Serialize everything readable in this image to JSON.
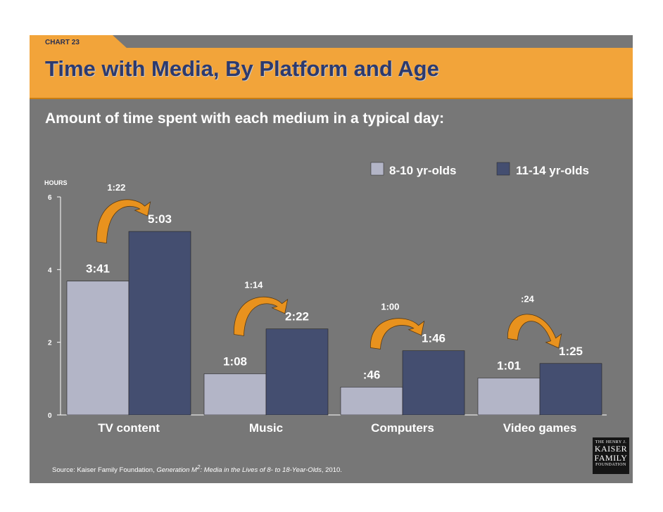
{
  "slide": {
    "tab_label": "CHART 23",
    "title": "Time with Media, By Platform and Age",
    "subtitle": "Amount of time spent with each medium in a typical day:",
    "source_prefix": "Source: Kaiser Family Foundation, ",
    "source_title": "Generation M",
    "source_sup": "2",
    "source_rest": ": Media in the Lives of 8- to 18-Year-Olds",
    "source_suffix": ", 2010.",
    "logo_line1": "THE HENRY J.",
    "logo_line2": "KAISER",
    "logo_line3": "FAMILY",
    "logo_line4": "FOUNDATION"
  },
  "colors": {
    "background": "#777777",
    "header": "#f2a43a",
    "series1": "#b3b5c7",
    "series2": "#444e70",
    "arrow": "#e8921e"
  },
  "chart_data": {
    "type": "bar",
    "title": "Time with Media, By Platform and Age",
    "ylabel": "HOURS",
    "ylim": [
      0,
      6
    ],
    "yticks": [
      "0",
      "2",
      "4",
      "6"
    ],
    "categories": [
      "TV content",
      "Music",
      "Computers",
      "Video games"
    ],
    "series": [
      {
        "name": "8-10 yr-olds",
        "values": [
          3.683,
          1.133,
          0.767,
          1.017
        ],
        "labels": [
          "3:41",
          "1:08",
          ":46",
          "1:01"
        ]
      },
      {
        "name": "11-14 yr-olds",
        "values": [
          5.05,
          2.367,
          1.767,
          1.417
        ],
        "labels": [
          "5:03",
          "2:22",
          "1:46",
          "1:25"
        ]
      }
    ],
    "differences": [
      "1:22",
      "1:14",
      "1:00",
      ":24"
    ],
    "legend_position": "top-right"
  }
}
